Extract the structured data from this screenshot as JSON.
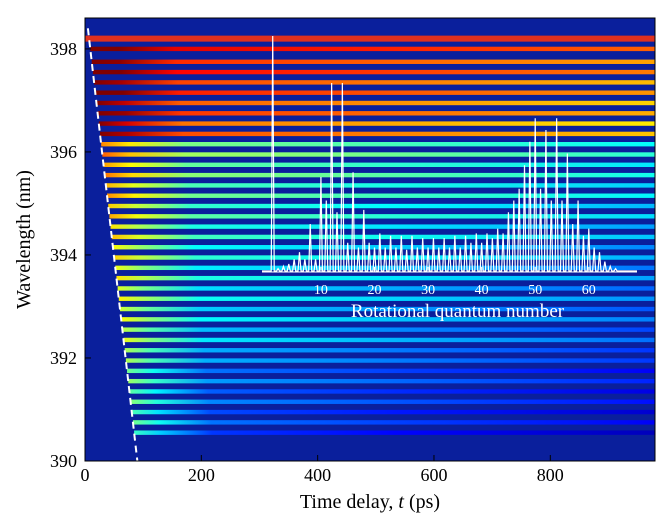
{
  "chart_data": [
    {
      "type": "heatmap",
      "title": "",
      "xlabel_prefix": "Time delay, ",
      "xlabel_var": "t",
      "xlabel_unit": " (ps)",
      "ylabel": "Wavelength (nm)",
      "xlim": [
        0,
        980
      ],
      "ylim": [
        390,
        398.6
      ],
      "x_ticks": [
        0,
        200,
        400,
        600,
        800
      ],
      "y_ticks": [
        390,
        392,
        394,
        396,
        398
      ],
      "colormap": "jet",
      "pump_line_nm": 398.2,
      "line_wavelengths_nm": [
        398.0,
        397.75,
        397.55,
        397.35,
        397.15,
        396.95,
        396.75,
        396.55,
        396.35,
        396.15,
        395.95,
        395.75,
        395.55,
        395.35,
        395.15,
        394.95,
        394.75,
        394.55,
        394.35,
        394.15,
        393.95,
        393.75,
        393.55,
        393.35,
        393.15,
        392.95,
        392.75,
        392.55,
        392.35,
        392.15,
        391.95,
        391.75,
        391.55,
        391.35,
        391.15,
        390.95,
        390.75,
        390.55
      ],
      "dashed_line": {
        "x": [
          5,
          90
        ],
        "y": [
          398.4,
          390
        ]
      }
    },
    {
      "type": "line",
      "xlabel": "Rotational quantum number",
      "ylabel": "",
      "xlim": [
        -1,
        69
      ],
      "x_ticks": [
        10,
        20,
        30,
        40,
        50,
        60
      ],
      "x": [
        1,
        2,
        3,
        4,
        5,
        6,
        7,
        8,
        9,
        10,
        11,
        12,
        13,
        14,
        15,
        16,
        17,
        18,
        19,
        20,
        21,
        22,
        23,
        24,
        25,
        26,
        27,
        28,
        29,
        30,
        31,
        32,
        33,
        34,
        35,
        36,
        37,
        38,
        39,
        40,
        41,
        42,
        43,
        44,
        45,
        46,
        47,
        48,
        49,
        50,
        51,
        52,
        53,
        54,
        55,
        56,
        57,
        58,
        59,
        60,
        61,
        62,
        63,
        64,
        65
      ],
      "y": [
        1.0,
        0.01,
        0.02,
        0.03,
        0.05,
        0.08,
        0.05,
        0.2,
        0.05,
        0.4,
        0.3,
        0.8,
        0.25,
        0.8,
        0.12,
        0.42,
        0.1,
        0.26,
        0.12,
        0.1,
        0.16,
        0.1,
        0.15,
        0.1,
        0.15,
        0.09,
        0.15,
        0.1,
        0.14,
        0.1,
        0.14,
        0.1,
        0.14,
        0.1,
        0.15,
        0.1,
        0.15,
        0.12,
        0.16,
        0.12,
        0.16,
        0.14,
        0.18,
        0.16,
        0.25,
        0.3,
        0.35,
        0.45,
        0.55,
        0.65,
        0.35,
        0.6,
        0.3,
        0.65,
        0.3,
        0.5,
        0.2,
        0.3,
        0.15,
        0.18,
        0.1,
        0.08,
        0.04,
        0.02,
        0.01
      ]
    }
  ]
}
